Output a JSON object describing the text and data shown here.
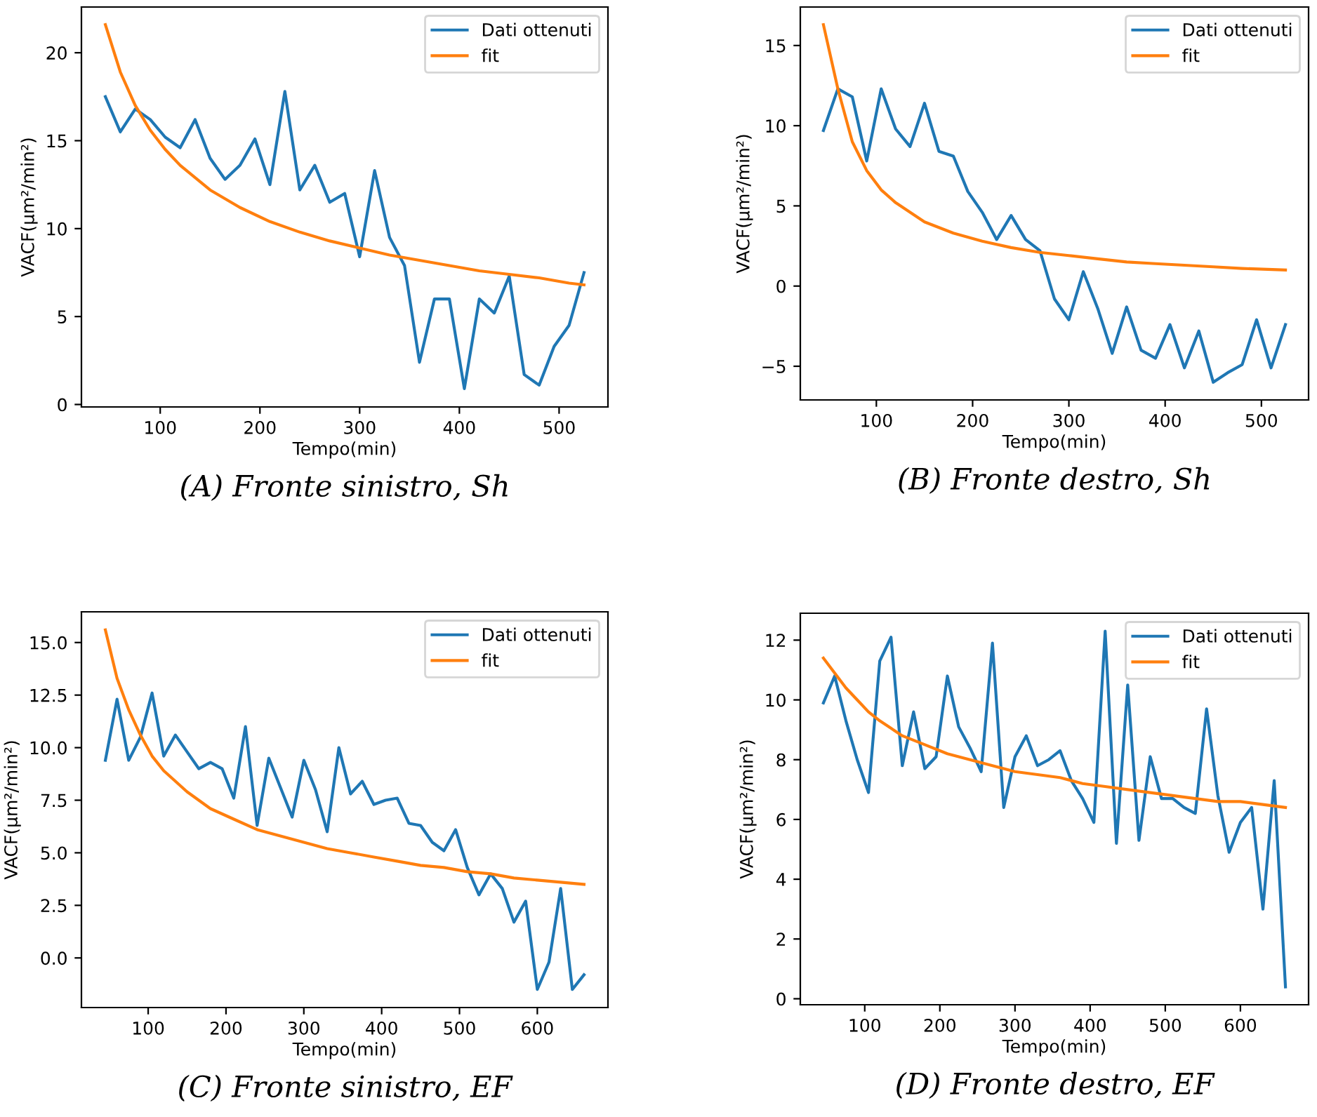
{
  "chart_data": [
    {
      "type": "line",
      "title": "(A) Fronte sinistro, Sh",
      "xlabel": "Tempo(min)",
      "ylabel": "VACF(μm²/min²)",
      "legend": "top right",
      "xlim": [
        21,
        549
      ],
      "ylim": [
        -0.14,
        22.6
      ],
      "xticks": [
        100,
        200,
        300,
        400,
        500
      ],
      "yticks": [
        0,
        5,
        10,
        15,
        20
      ],
      "series": [
        {
          "name": "Dati ottenuti",
          "color": "#1f77b4",
          "x": [
            45,
            60,
            75,
            90,
            105,
            120,
            135,
            150,
            165,
            180,
            195,
            210,
            225,
            240,
            255,
            270,
            285,
            300,
            315,
            330,
            345,
            360,
            375,
            390,
            405,
            420,
            435,
            450,
            465,
            480,
            495,
            510,
            525
          ],
          "values": [
            17.5,
            15.5,
            16.8,
            16.2,
            15.2,
            14.6,
            16.2,
            14.0,
            12.8,
            13.6,
            15.1,
            12.5,
            17.8,
            12.2,
            13.6,
            11.5,
            12.0,
            8.4,
            13.3,
            9.5,
            7.9,
            2.4,
            6.0,
            6.0,
            0.9,
            6.0,
            5.2,
            7.3,
            1.7,
            1.1,
            3.3,
            4.5,
            7.5
          ]
        },
        {
          "name": "fit",
          "color": "#ff7f0e",
          "x": [
            45,
            60,
            75,
            90,
            105,
            120,
            150,
            180,
            210,
            240,
            270,
            300,
            330,
            360,
            390,
            420,
            450,
            480,
            510,
            525
          ],
          "values": [
            21.6,
            18.9,
            17.0,
            15.6,
            14.5,
            13.6,
            12.2,
            11.2,
            10.4,
            9.8,
            9.3,
            8.9,
            8.5,
            8.2,
            7.9,
            7.6,
            7.4,
            7.2,
            6.9,
            6.8
          ]
        }
      ]
    },
    {
      "type": "line",
      "title": "(B) Fronte destro, Sh",
      "xlabel": "Tempo(min)",
      "ylabel": "VACF(μm²/min²)",
      "legend": "top right",
      "xlim": [
        21,
        549
      ],
      "ylim": [
        -7.1,
        17.4
      ],
      "xticks": [
        100,
        200,
        300,
        400,
        500
      ],
      "yticks": [
        -5,
        0,
        5,
        10,
        15
      ],
      "series": [
        {
          "name": "Dati ottenuti",
          "color": "#1f77b4",
          "x": [
            45,
            60,
            75,
            90,
            105,
            120,
            135,
            150,
            165,
            180,
            195,
            210,
            225,
            240,
            255,
            270,
            285,
            300,
            315,
            330,
            345,
            360,
            375,
            390,
            405,
            420,
            435,
            450,
            465,
            480,
            495,
            510,
            525
          ],
          "values": [
            9.7,
            12.3,
            11.8,
            7.8,
            12.3,
            9.8,
            8.7,
            11.4,
            8.4,
            8.1,
            5.9,
            4.6,
            2.9,
            4.4,
            2.9,
            2.2,
            -0.8,
            -2.1,
            0.9,
            -1.4,
            -4.2,
            -1.3,
            -4.0,
            -4.5,
            -2.4,
            -5.1,
            -2.8,
            -6.0,
            -5.4,
            -4.9,
            -2.1,
            -5.1,
            -2.4
          ]
        },
        {
          "name": "fit",
          "color": "#ff7f0e",
          "x": [
            45,
            60,
            75,
            90,
            105,
            120,
            150,
            180,
            210,
            240,
            270,
            300,
            330,
            360,
            390,
            420,
            450,
            480,
            525
          ],
          "values": [
            16.3,
            12.3,
            9.0,
            7.2,
            6.0,
            5.2,
            4.0,
            3.3,
            2.8,
            2.4,
            2.1,
            1.9,
            1.7,
            1.5,
            1.4,
            1.3,
            1.2,
            1.1,
            1.0
          ]
        }
      ]
    },
    {
      "type": "line",
      "title": "(C) Fronte sinistro, EF",
      "xlabel": "Tempo(min)",
      "ylabel": "VACF(μm²/min²)",
      "legend": "top right",
      "xlim": [
        14.25,
        690.75
      ],
      "ylim": [
        -2.36,
        16.46
      ],
      "xticks": [
        100,
        200,
        300,
        400,
        500,
        600
      ],
      "yticks": [
        {
          "value": 0,
          "label": "0.0"
        },
        2.5,
        {
          "value": 5,
          "label": "5.0"
        },
        7.5,
        {
          "value": 10,
          "label": "10.0"
        },
        12.5,
        {
          "value": 15,
          "label": "15.0"
        }
      ],
      "series": [
        {
          "name": "Dati ottenuti",
          "color": "#1f77b4",
          "x": [
            45,
            60,
            75,
            90,
            105,
            120,
            135,
            150,
            165,
            180,
            195,
            210,
            225,
            240,
            255,
            270,
            285,
            300,
            315,
            330,
            345,
            360,
            375,
            390,
            405,
            420,
            435,
            450,
            465,
            480,
            495,
            510,
            525,
            540,
            555,
            570,
            585,
            600,
            615,
            630,
            645,
            660
          ],
          "values": [
            9.4,
            12.3,
            9.4,
            10.5,
            12.6,
            9.6,
            10.6,
            9.8,
            9.0,
            9.3,
            9.0,
            7.6,
            11.0,
            6.3,
            9.5,
            8.1,
            6.7,
            9.4,
            8.0,
            6.0,
            10.0,
            7.8,
            8.4,
            7.3,
            7.5,
            7.6,
            6.4,
            6.3,
            5.5,
            5.1,
            6.1,
            4.3,
            3.0,
            4.0,
            3.3,
            1.7,
            2.7,
            -1.5,
            -0.2,
            3.3,
            -1.5,
            -0.8
          ]
        },
        {
          "name": "fit",
          "color": "#ff7f0e",
          "x": [
            45,
            60,
            75,
            90,
            105,
            120,
            150,
            180,
            210,
            240,
            270,
            300,
            330,
            360,
            390,
            420,
            450,
            480,
            510,
            540,
            570,
            600,
            630,
            660
          ],
          "values": [
            15.6,
            13.3,
            11.8,
            10.6,
            9.6,
            8.9,
            7.9,
            7.1,
            6.6,
            6.1,
            5.8,
            5.5,
            5.2,
            5.0,
            4.8,
            4.6,
            4.4,
            4.3,
            4.1,
            4.0,
            3.8,
            3.7,
            3.6,
            3.5
          ]
        }
      ]
    },
    {
      "type": "line",
      "title": "(D) Fronte destro, EF",
      "xlabel": "Tempo(min)",
      "ylabel": "VACF(μm²/min²)",
      "legend": "top right",
      "xlim": [
        14.25,
        690.75
      ],
      "ylim": [
        -0.2,
        12.9
      ],
      "xticks": [
        100,
        200,
        300,
        400,
        500,
        600
      ],
      "yticks": [
        0,
        2,
        4,
        6,
        8,
        10,
        12
      ],
      "series": [
        {
          "name": "Dati ottenuti",
          "color": "#1f77b4",
          "x": [
            45,
            60,
            75,
            90,
            105,
            120,
            135,
            150,
            165,
            180,
            195,
            210,
            225,
            240,
            255,
            270,
            285,
            300,
            315,
            330,
            345,
            360,
            375,
            390,
            405,
            420,
            435,
            450,
            465,
            480,
            495,
            510,
            525,
            540,
            555,
            570,
            585,
            600,
            615,
            630,
            645,
            660
          ],
          "values": [
            9.9,
            10.8,
            9.3,
            8.0,
            6.9,
            11.3,
            12.1,
            7.8,
            9.6,
            7.7,
            8.1,
            10.8,
            9.1,
            8.4,
            7.6,
            11.9,
            6.4,
            8.1,
            8.8,
            7.8,
            8.0,
            8.3,
            7.3,
            6.7,
            5.9,
            12.3,
            5.2,
            10.5,
            5.3,
            8.1,
            6.7,
            6.7,
            6.4,
            6.2,
            9.7,
            6.8,
            4.9,
            5.9,
            6.4,
            3.0,
            7.3,
            0.4
          ]
        },
        {
          "name": "fit",
          "color": "#ff7f0e",
          "x": [
            45,
            60,
            75,
            90,
            105,
            120,
            150,
            180,
            210,
            240,
            270,
            300,
            330,
            360,
            390,
            420,
            450,
            480,
            510,
            540,
            570,
            600,
            630,
            660
          ],
          "values": [
            11.4,
            10.9,
            10.4,
            10.0,
            9.6,
            9.3,
            8.8,
            8.5,
            8.2,
            8.0,
            7.8,
            7.6,
            7.5,
            7.4,
            7.2,
            7.1,
            7.0,
            6.9,
            6.8,
            6.7,
            6.6,
            6.6,
            6.5,
            6.4
          ]
        }
      ]
    }
  ]
}
